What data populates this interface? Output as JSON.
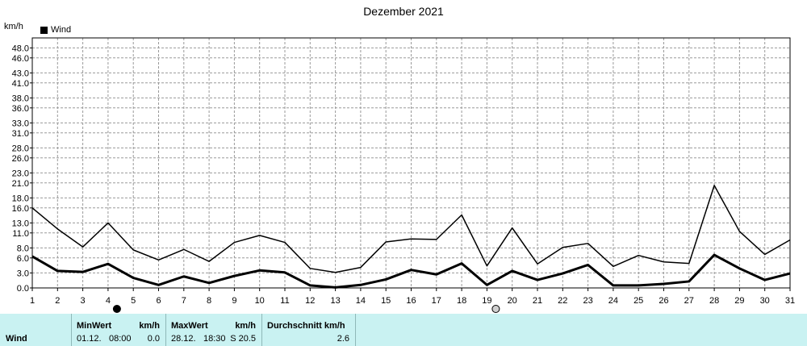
{
  "chart_data": {
    "type": "line",
    "title": "Dezember 2021",
    "unit_label": "km/h",
    "legend": [
      "Wind"
    ],
    "legend_placement": "top-left",
    "grid": true,
    "x": [
      1,
      2,
      3,
      4,
      5,
      6,
      7,
      8,
      9,
      10,
      11,
      12,
      13,
      14,
      15,
      16,
      17,
      18,
      19,
      20,
      21,
      22,
      23,
      24,
      25,
      26,
      27,
      28,
      29,
      30,
      31
    ],
    "xlim": [
      1,
      31
    ],
    "ylim": [
      0,
      50
    ],
    "yticks": [
      "0.0",
      "3.0",
      "6.0",
      "8.0",
      "11.0",
      "13.0",
      "16.0",
      "18.0",
      "21.0",
      "23.0",
      "26.0",
      "28.0",
      "31.0",
      "33.0",
      "36.0",
      "38.0",
      "41.0",
      "43.0",
      "46.0",
      "48.0"
    ],
    "series": [
      {
        "name": "Wind",
        "style": "thick",
        "values": [
          6.3,
          3.4,
          3.2,
          4.8,
          2.0,
          0.6,
          2.3,
          1.0,
          2.4,
          3.5,
          3.1,
          0.5,
          0.1,
          0.6,
          1.7,
          3.6,
          2.7,
          4.9,
          0.6,
          3.4,
          1.6,
          2.9,
          4.6,
          0.5,
          0.5,
          0.8,
          1.3,
          6.6,
          3.9,
          1.6,
          2.9
        ]
      },
      {
        "style": "thin",
        "values": [
          16.0,
          11.8,
          8.2,
          13.0,
          7.6,
          5.6,
          7.7,
          5.3,
          9.1,
          10.5,
          9.1,
          3.9,
          3.1,
          4.1,
          9.2,
          9.8,
          9.7,
          14.6,
          4.4,
          12.0,
          4.8,
          8.1,
          8.9,
          4.3,
          6.5,
          5.2,
          4.9,
          20.5,
          11.3,
          6.7,
          9.6
        ]
      }
    ],
    "markers": [
      {
        "x": 4,
        "symbol": "black-circle"
      },
      {
        "x": 19,
        "symbol": "gray-circle"
      }
    ]
  },
  "stats": {
    "row_label": "Wind",
    "min_header": "MinWert",
    "min_unit": "km/h",
    "min_date": "01.12.",
    "min_time": "08:00",
    "min_value": "0.0",
    "max_header": "MaxWert",
    "max_unit": "km/h",
    "max_date": "28.12.",
    "max_time": "18:30",
    "max_value": "S 20.5",
    "avg_header": "Durchschnitt km/h",
    "avg_value": "2.6"
  }
}
